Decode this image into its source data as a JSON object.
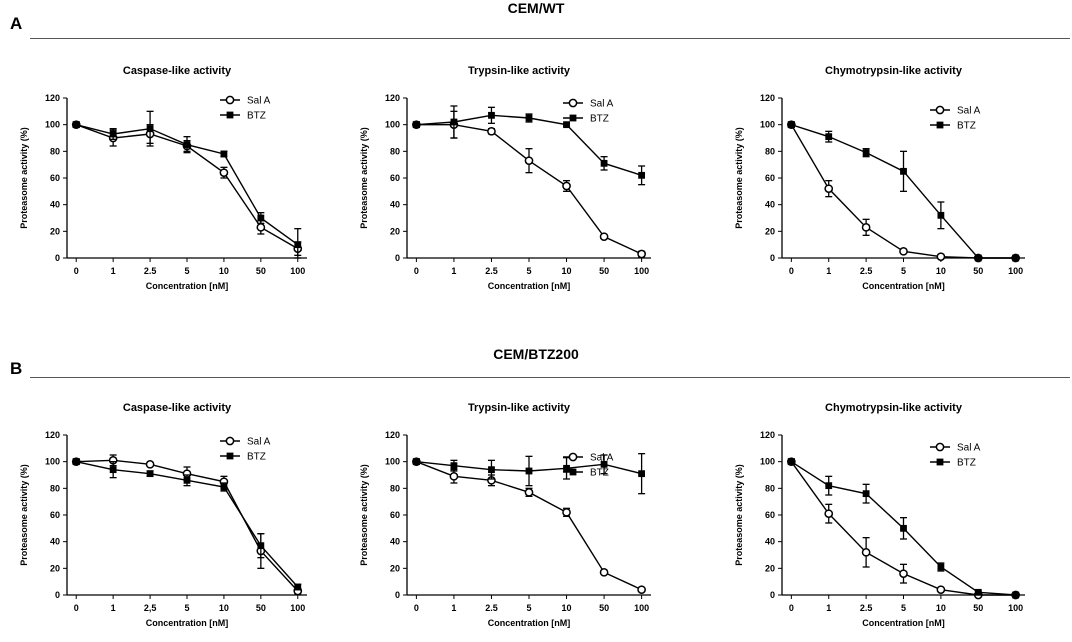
{
  "panels": [
    {
      "letter": "A",
      "title": "CEM/WT"
    },
    {
      "letter": "B",
      "title": "CEM/BTZ200"
    }
  ],
  "chart_data": [
    {
      "type": "line",
      "panel": "A",
      "title": "Caspase-like activity",
      "xlabel": "Concentration [nM]",
      "ylabel": "Proteasome activity (%)",
      "categories": [
        "0",
        "1",
        "2.5",
        "5",
        "10",
        "50",
        "100"
      ],
      "ylim": [
        0,
        120
      ],
      "yticks": [
        0,
        20,
        40,
        60,
        80,
        100,
        120
      ],
      "legend_position": "top-right",
      "series": [
        {
          "name": "Sal A",
          "marker": "open-circle",
          "values": [
            100,
            90,
            93,
            84,
            64,
            23,
            7
          ],
          "errors": [
            2,
            6,
            7,
            4,
            4,
            5,
            5
          ]
        },
        {
          "name": "BTZ",
          "marker": "filled-square",
          "values": [
            100,
            93,
            97,
            85,
            78,
            30,
            10
          ],
          "errors": [
            2,
            4,
            13,
            6,
            2,
            4,
            12
          ]
        }
      ]
    },
    {
      "type": "line",
      "panel": "A",
      "title": "Trypsin-like activity",
      "xlabel": "Concentration [nM]",
      "ylabel": "Proteasome activity (%)",
      "categories": [
        "0",
        "1",
        "2.5",
        "5",
        "10",
        "50",
        "100"
      ],
      "ylim": [
        0,
        120
      ],
      "yticks": [
        0,
        20,
        40,
        60,
        80,
        100,
        120
      ],
      "legend_position": "top-right",
      "series": [
        {
          "name": "Sal A",
          "marker": "open-circle",
          "values": [
            100,
            100,
            95,
            73,
            54,
            16,
            3
          ],
          "errors": [
            2,
            10,
            2,
            9,
            4,
            1,
            2
          ]
        },
        {
          "name": "BTZ",
          "marker": "filled-square",
          "values": [
            100,
            102,
            107,
            105,
            100,
            71,
            62
          ],
          "errors": [
            2,
            12,
            6,
            3,
            1,
            5,
            7
          ]
        }
      ]
    },
    {
      "type": "line",
      "panel": "A",
      "title": "Chymotrypsin-like activity",
      "xlabel": "Concentration [nM]",
      "ylabel": "Proteasome activity (%)",
      "categories": [
        "0",
        "1",
        "2.5",
        "5",
        "10",
        "50",
        "100"
      ],
      "ylim": [
        0,
        120
      ],
      "yticks": [
        0,
        20,
        40,
        60,
        80,
        100,
        120
      ],
      "legend_position": "top-right",
      "series": [
        {
          "name": "Sal A",
          "marker": "open-circle",
          "values": [
            100,
            52,
            23,
            5,
            1,
            0,
            0
          ],
          "errors": [
            2,
            6,
            6,
            1,
            1,
            0,
            0
          ]
        },
        {
          "name": "BTZ",
          "marker": "filled-square",
          "values": [
            100,
            91,
            79,
            65,
            32,
            0,
            0
          ],
          "errors": [
            2,
            4,
            3,
            15,
            10,
            0,
            0
          ]
        }
      ]
    },
    {
      "type": "line",
      "panel": "B",
      "title": "Caspase-like activity",
      "xlabel": "Concentration [nM]",
      "ylabel": "Proteasome activity (%)",
      "categories": [
        "0",
        "1",
        "2,5",
        "5",
        "10",
        "50",
        "100"
      ],
      "ylim": [
        0,
        120
      ],
      "yticks": [
        0,
        20,
        40,
        60,
        80,
        100,
        120
      ],
      "legend_position": "top-right",
      "series": [
        {
          "name": "Sal A",
          "marker": "open-circle",
          "values": [
            100,
            101,
            98,
            91,
            85,
            33,
            3
          ],
          "errors": [
            2,
            4,
            1,
            5,
            4,
            13,
            2
          ]
        },
        {
          "name": "BTZ",
          "marker": "filled-square",
          "values": [
            100,
            94,
            91,
            86,
            81,
            37,
            6
          ],
          "errors": [
            2,
            6,
            2,
            4,
            3,
            9,
            2
          ]
        }
      ]
    },
    {
      "type": "line",
      "panel": "B",
      "title": "Trypsin-like activity",
      "xlabel": "Concentration [nM]",
      "ylabel": "Proteasome activity (%)",
      "categories": [
        "0",
        "1",
        "2.5",
        "5",
        "10",
        "50",
        "100"
      ],
      "ylim": [
        0,
        120
      ],
      "yticks": [
        0,
        20,
        40,
        60,
        80,
        100,
        120
      ],
      "legend_position": "top-right",
      "series": [
        {
          "name": "Sal A",
          "marker": "open-circle",
          "values": [
            100,
            89,
            86,
            77,
            62,
            17,
            4
          ],
          "errors": [
            2,
            5,
            4,
            3,
            3,
            1,
            1
          ]
        },
        {
          "name": "BTZ",
          "marker": "filled-square",
          "values": [
            100,
            97,
            94,
            93,
            95,
            98,
            91
          ],
          "errors": [
            2,
            4,
            7,
            11,
            8,
            7,
            15
          ]
        }
      ]
    },
    {
      "type": "line",
      "panel": "B",
      "title": "Chymotrypsin-like activity",
      "xlabel": "Concentration [nM]",
      "ylabel": "Proteasome activity (%)",
      "categories": [
        "0",
        "1",
        "2.5",
        "5",
        "10",
        "50",
        "100"
      ],
      "ylim": [
        0,
        120
      ],
      "yticks": [
        0,
        20,
        40,
        60,
        80,
        100,
        120
      ],
      "legend_position": "top-right",
      "series": [
        {
          "name": "Sal A",
          "marker": "open-circle",
          "values": [
            100,
            61,
            32,
            16,
            4,
            0,
            0
          ],
          "errors": [
            2,
            7,
            11,
            7,
            1,
            0,
            0
          ]
        },
        {
          "name": "BTZ",
          "marker": "filled-square",
          "values": [
            100,
            82,
            76,
            50,
            21,
            2,
            0
          ],
          "errors": [
            2,
            7,
            7,
            8,
            3,
            1,
            0
          ]
        }
      ]
    }
  ]
}
